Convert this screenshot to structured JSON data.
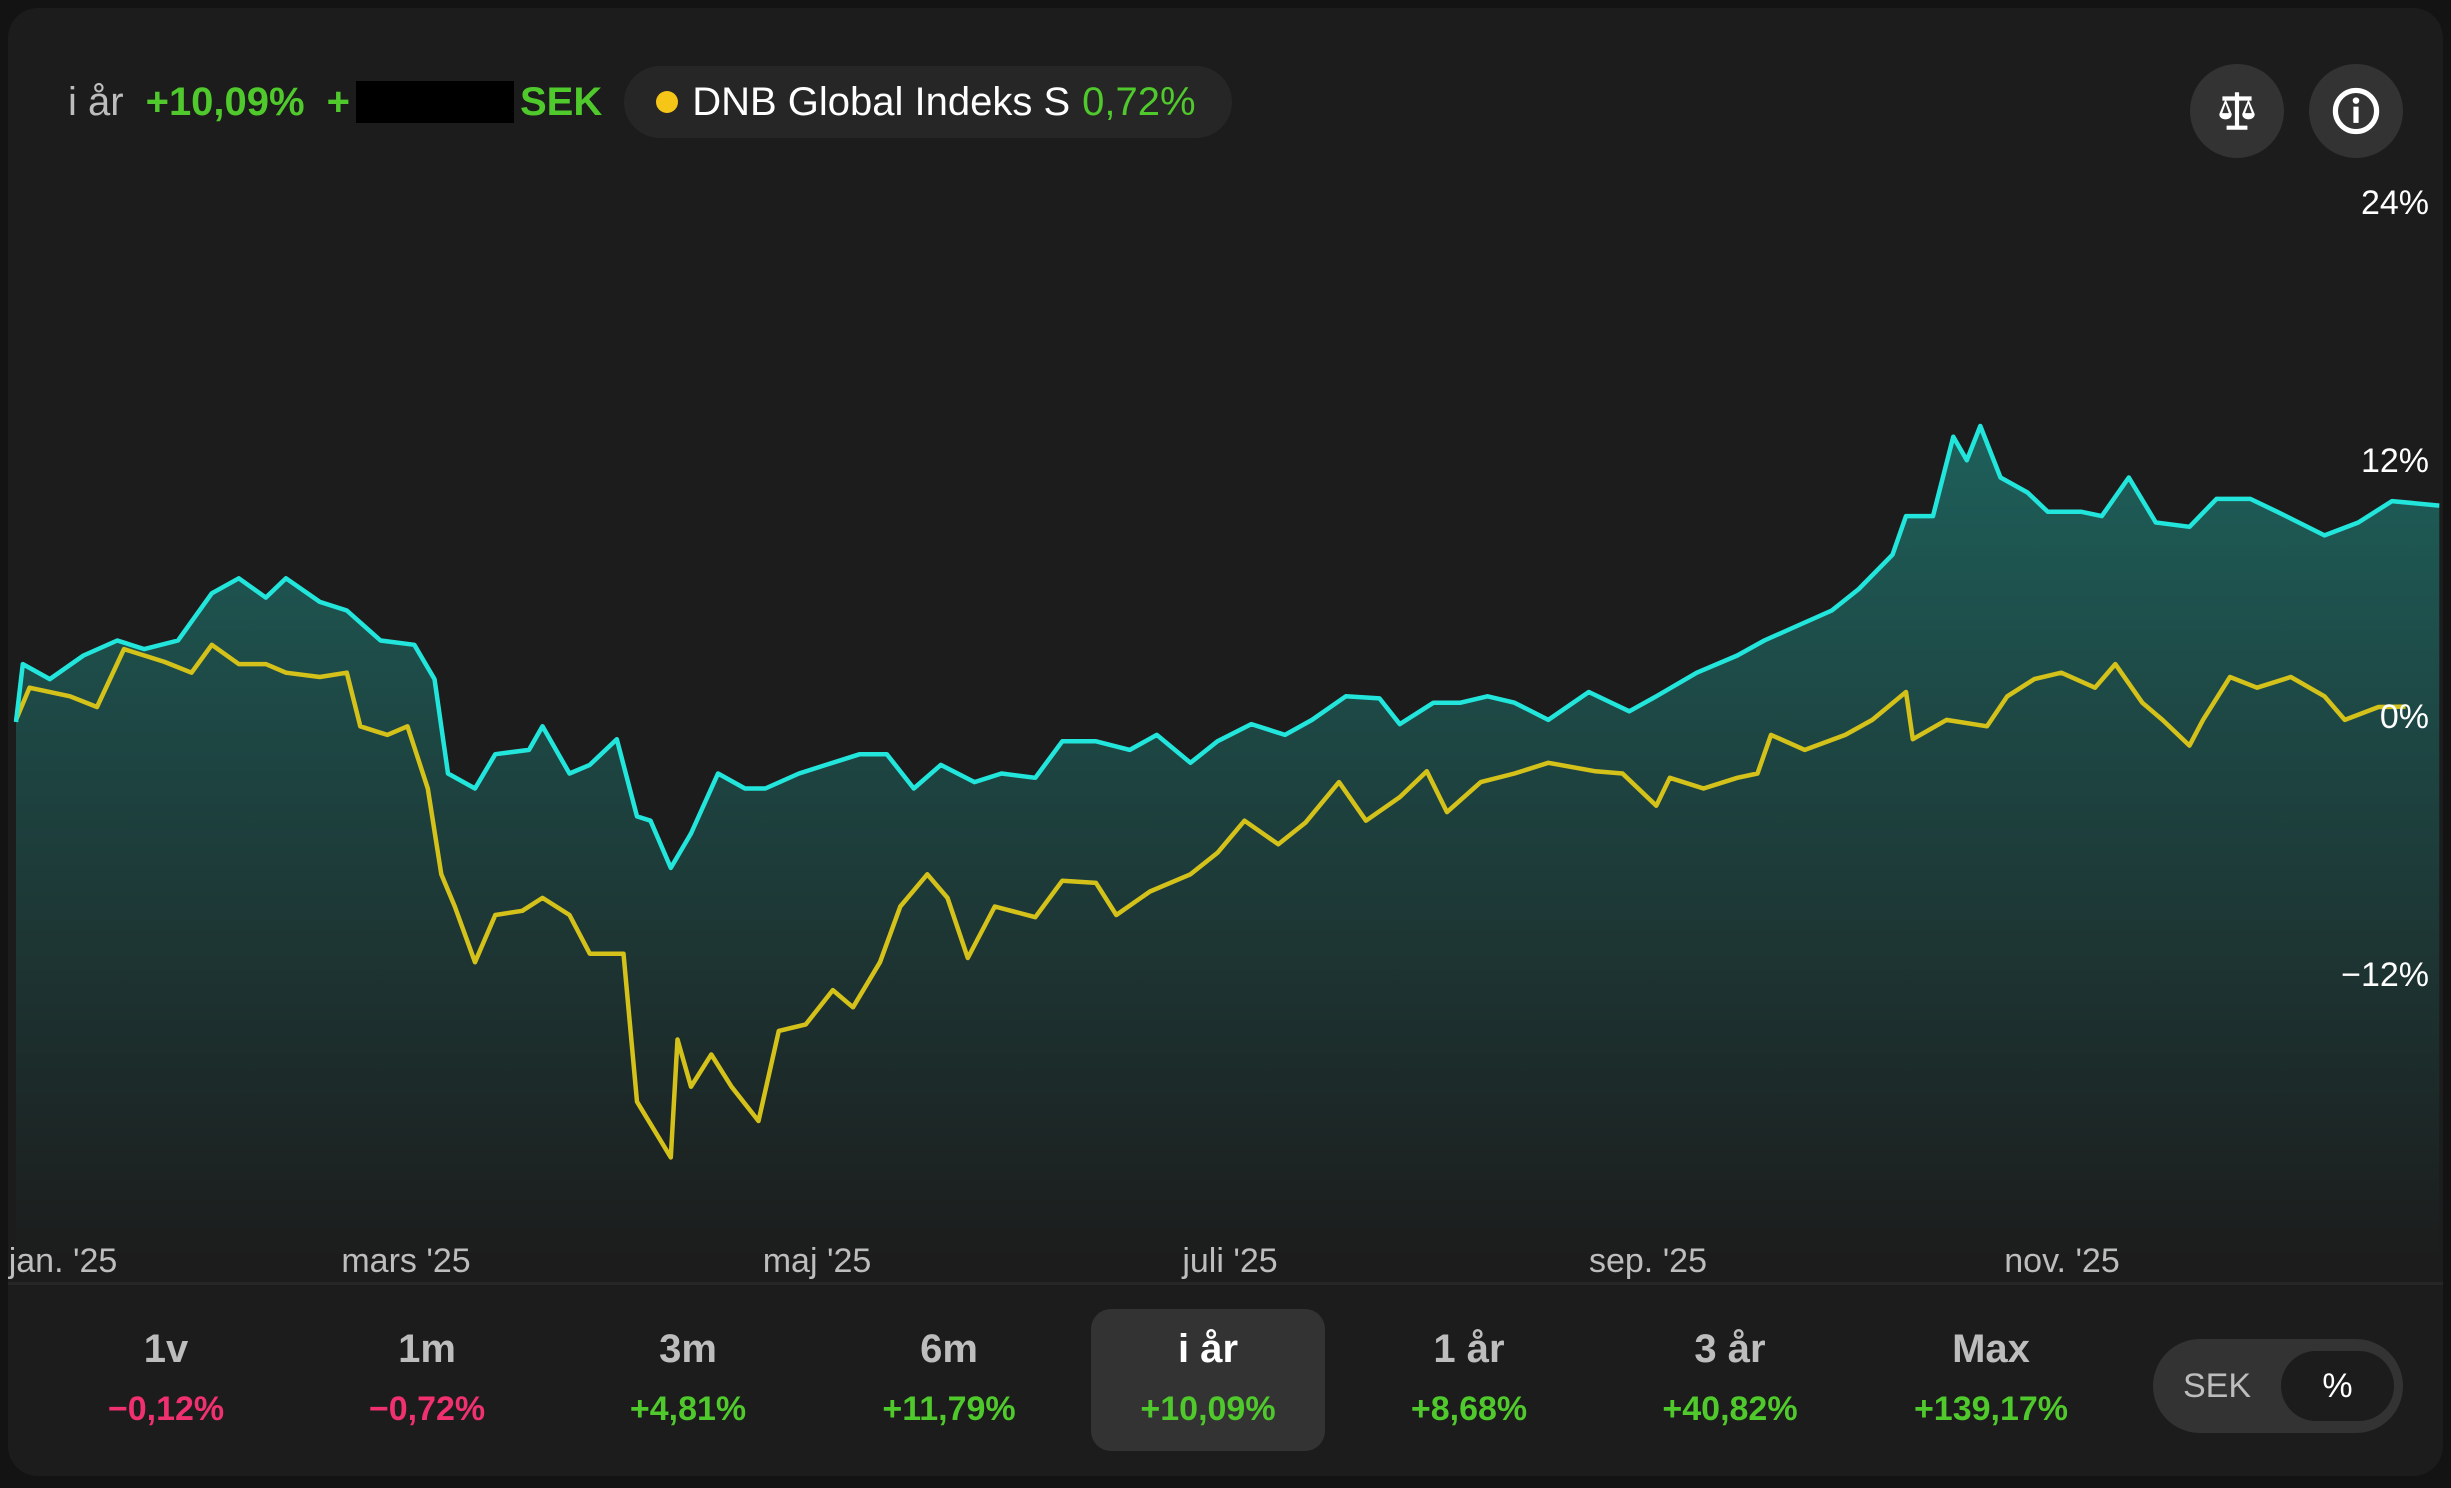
{
  "header": {
    "period_label": "i år",
    "change_percent": "+10,09%",
    "change_amount_prefix": "+",
    "currency": "SEK",
    "benchmark": {
      "name": "DNB Global Indeks S",
      "change": "0,72%",
      "color": "#f5c518"
    }
  },
  "icons": {
    "compare": "scale-balance-icon",
    "info": "info-icon"
  },
  "colors": {
    "fund_line": "#22e6dc",
    "benchmark_line": "#d4c21a",
    "positive": "#4fc92b",
    "negative": "#f0306f",
    "fill_top": "#1e5f5a"
  },
  "chart_data": {
    "type": "area",
    "y_axis": {
      "ticks": [
        "24%",
        "12%",
        "0%",
        "−12%"
      ],
      "tick_values": [
        24,
        12,
        0,
        -12
      ],
      "unit": "%",
      "position": "right"
    },
    "x_axis": {
      "ticks": [
        "jan. '25",
        "mars '25",
        "maj '25",
        "juli '25",
        "sep. '25",
        "nov. '25"
      ],
      "tick_dates": [
        "2025-01-01",
        "2025-03-01",
        "2025-05-01",
        "2025-07-01",
        "2025-09-01",
        "2025-11-01"
      ],
      "range": [
        "2025-01-01",
        "2025-12-26"
      ]
    },
    "grid": false,
    "series": [
      {
        "role": "fund",
        "color": "#22e6dc",
        "filled": true,
        "points": [
          [
            "2025-01-01",
            0
          ],
          [
            "2025-01-02",
            2.7
          ],
          [
            "2025-01-06",
            2.0
          ],
          [
            "2025-01-11",
            3.1
          ],
          [
            "2025-01-16",
            3.8
          ],
          [
            "2025-01-20",
            3.4
          ],
          [
            "2025-01-25",
            3.8
          ],
          [
            "2025-01-30",
            6.0
          ],
          [
            "2025-02-03",
            6.7
          ],
          [
            "2025-02-07",
            5.8
          ],
          [
            "2025-02-10",
            6.7
          ],
          [
            "2025-02-15",
            5.6
          ],
          [
            "2025-02-19",
            5.2
          ],
          [
            "2025-02-24",
            3.8
          ],
          [
            "2025-03-01",
            3.6
          ],
          [
            "2025-03-04",
            2.0
          ],
          [
            "2025-03-06",
            -2.4
          ],
          [
            "2025-03-10",
            -3.1
          ],
          [
            "2025-03-13",
            -1.5
          ],
          [
            "2025-03-18",
            -1.3
          ],
          [
            "2025-03-20",
            -0.2
          ],
          [
            "2025-03-24",
            -2.4
          ],
          [
            "2025-03-27",
            -2.0
          ],
          [
            "2025-03-31",
            -0.8
          ],
          [
            "2025-04-03",
            -4.4
          ],
          [
            "2025-04-05",
            -4.6
          ],
          [
            "2025-04-08",
            -6.8
          ],
          [
            "2025-04-11",
            -5.2
          ],
          [
            "2025-04-15",
            -2.4
          ],
          [
            "2025-04-19",
            -3.1
          ],
          [
            "2025-04-22",
            -3.1
          ],
          [
            "2025-04-27",
            -2.4
          ],
          [
            "2025-05-01",
            -2.0
          ],
          [
            "2025-05-06",
            -1.5
          ],
          [
            "2025-05-10",
            -1.5
          ],
          [
            "2025-05-14",
            -3.1
          ],
          [
            "2025-05-18",
            -2.0
          ],
          [
            "2025-05-23",
            -2.8
          ],
          [
            "2025-05-27",
            -2.4
          ],
          [
            "2025-06-01",
            -2.6
          ],
          [
            "2025-06-05",
            -0.9
          ],
          [
            "2025-06-10",
            -0.9
          ],
          [
            "2025-06-15",
            -1.3
          ],
          [
            "2025-06-19",
            -0.6
          ],
          [
            "2025-06-24",
            -1.9
          ],
          [
            "2025-06-28",
            -0.9
          ],
          [
            "2025-07-03",
            -0.1
          ],
          [
            "2025-07-08",
            -0.6
          ],
          [
            "2025-07-12",
            0.1
          ],
          [
            "2025-07-17",
            1.2
          ],
          [
            "2025-07-22",
            1.1
          ],
          [
            "2025-07-25",
            -0.1
          ],
          [
            "2025-07-30",
            0.9
          ],
          [
            "2025-08-03",
            0.9
          ],
          [
            "2025-08-07",
            1.2
          ],
          [
            "2025-08-11",
            0.9
          ],
          [
            "2025-08-16",
            0.1
          ],
          [
            "2025-08-22",
            1.4
          ],
          [
            "2025-08-28",
            0.5
          ],
          [
            "2025-09-01",
            1.2
          ],
          [
            "2025-09-07",
            2.3
          ],
          [
            "2025-09-13",
            3.1
          ],
          [
            "2025-09-17",
            3.8
          ],
          [
            "2025-09-22",
            4.5
          ],
          [
            "2025-09-27",
            5.2
          ],
          [
            "2025-10-01",
            6.2
          ],
          [
            "2025-10-06",
            7.8
          ],
          [
            "2025-10-08",
            9.6
          ],
          [
            "2025-10-12",
            9.6
          ],
          [
            "2025-10-15",
            13.3
          ],
          [
            "2025-10-17",
            12.2
          ],
          [
            "2025-10-19",
            13.8
          ],
          [
            "2025-10-22",
            11.4
          ],
          [
            "2025-10-26",
            10.7
          ],
          [
            "2025-10-29",
            9.8
          ],
          [
            "2025-11-03",
            9.8
          ],
          [
            "2025-11-06",
            9.6
          ],
          [
            "2025-11-10",
            11.4
          ],
          [
            "2025-11-14",
            9.3
          ],
          [
            "2025-11-19",
            9.1
          ],
          [
            "2025-11-23",
            10.4
          ],
          [
            "2025-11-28",
            10.4
          ],
          [
            "2025-12-02",
            9.8
          ],
          [
            "2025-12-09",
            8.7
          ],
          [
            "2025-12-14",
            9.3
          ],
          [
            "2025-12-19",
            10.3
          ],
          [
            "2025-12-26",
            10.09
          ]
        ]
      },
      {
        "role": "benchmark",
        "name": "DNB Global Indeks S",
        "color": "#d4c21a",
        "filled": false,
        "points": [
          [
            "2025-01-01",
            0.1
          ],
          [
            "2025-01-03",
            1.6
          ],
          [
            "2025-01-09",
            1.2
          ],
          [
            "2025-01-13",
            0.7
          ],
          [
            "2025-01-17",
            3.4
          ],
          [
            "2025-01-23",
            2.8
          ],
          [
            "2025-01-27",
            2.3
          ],
          [
            "2025-01-30",
            3.6
          ],
          [
            "2025-02-03",
            2.7
          ],
          [
            "2025-02-07",
            2.7
          ],
          [
            "2025-02-10",
            2.3
          ],
          [
            "2025-02-15",
            2.1
          ],
          [
            "2025-02-19",
            2.3
          ],
          [
            "2025-02-21",
            -0.2
          ],
          [
            "2025-02-25",
            -0.6
          ],
          [
            "2025-02-28",
            -0.2
          ],
          [
            "2025-03-03",
            -3.1
          ],
          [
            "2025-03-05",
            -7.1
          ],
          [
            "2025-03-07",
            -8.6
          ],
          [
            "2025-03-10",
            -11.2
          ],
          [
            "2025-03-13",
            -9.0
          ],
          [
            "2025-03-17",
            -8.8
          ],
          [
            "2025-03-20",
            -8.2
          ],
          [
            "2025-03-24",
            -9.0
          ],
          [
            "2025-03-27",
            -10.8
          ],
          [
            "2025-04-01",
            -10.8
          ],
          [
            "2025-04-03",
            -17.7
          ],
          [
            "2025-04-08",
            -20.3
          ],
          [
            "2025-04-09",
            -14.8
          ],
          [
            "2025-04-11",
            -17.0
          ],
          [
            "2025-04-14",
            -15.5
          ],
          [
            "2025-04-17",
            -17.0
          ],
          [
            "2025-04-21",
            -18.6
          ],
          [
            "2025-04-24",
            -14.4
          ],
          [
            "2025-04-28",
            -14.1
          ],
          [
            "2025-05-02",
            -12.5
          ],
          [
            "2025-05-05",
            -13.3
          ],
          [
            "2025-05-09",
            -11.2
          ],
          [
            "2025-05-12",
            -8.6
          ],
          [
            "2025-05-16",
            -7.1
          ],
          [
            "2025-05-19",
            -8.2
          ],
          [
            "2025-05-22",
            -11.0
          ],
          [
            "2025-05-26",
            -8.6
          ],
          [
            "2025-06-01",
            -9.1
          ],
          [
            "2025-06-05",
            -7.4
          ],
          [
            "2025-06-10",
            -7.5
          ],
          [
            "2025-06-13",
            -9.0
          ],
          [
            "2025-06-18",
            -7.9
          ],
          [
            "2025-06-24",
            -7.1
          ],
          [
            "2025-06-28",
            -6.1
          ],
          [
            "2025-07-02",
            -4.6
          ],
          [
            "2025-07-07",
            -5.7
          ],
          [
            "2025-07-11",
            -4.7
          ],
          [
            "2025-07-16",
            -2.8
          ],
          [
            "2025-07-20",
            -4.6
          ],
          [
            "2025-07-25",
            -3.5
          ],
          [
            "2025-07-29",
            -2.3
          ],
          [
            "2025-08-01",
            -4.2
          ],
          [
            "2025-08-06",
            -2.8
          ],
          [
            "2025-08-11",
            -2.4
          ],
          [
            "2025-08-16",
            -1.9
          ],
          [
            "2025-08-23",
            -2.3
          ],
          [
            "2025-08-27",
            -2.4
          ],
          [
            "2025-09-01",
            -3.9
          ],
          [
            "2025-09-03",
            -2.6
          ],
          [
            "2025-09-08",
            -3.1
          ],
          [
            "2025-09-13",
            -2.6
          ],
          [
            "2025-09-16",
            -2.4
          ],
          [
            "2025-09-18",
            -0.6
          ],
          [
            "2025-09-23",
            -1.3
          ],
          [
            "2025-09-29",
            -0.6
          ],
          [
            "2025-10-03",
            0.1
          ],
          [
            "2025-10-08",
            1.4
          ],
          [
            "2025-10-09",
            -0.8
          ],
          [
            "2025-10-14",
            0.1
          ],
          [
            "2025-10-20",
            -0.2
          ],
          [
            "2025-10-23",
            1.2
          ],
          [
            "2025-10-27",
            2.0
          ],
          [
            "2025-10-31",
            2.3
          ],
          [
            "2025-11-05",
            1.6
          ],
          [
            "2025-11-08",
            2.7
          ],
          [
            "2025-11-12",
            0.9
          ],
          [
            "2025-11-15",
            0.1
          ],
          [
            "2025-11-19",
            -1.1
          ],
          [
            "2025-11-21",
            0.1
          ],
          [
            "2025-11-25",
            2.1
          ],
          [
            "2025-11-29",
            1.6
          ],
          [
            "2025-12-04",
            2.1
          ],
          [
            "2025-12-09",
            1.2
          ],
          [
            "2025-12-12",
            0.1
          ],
          [
            "2025-12-17",
            0.7
          ],
          [
            "2025-12-21",
            0.72
          ]
        ]
      }
    ]
  },
  "periods": [
    {
      "label": "1v",
      "value": "−0,12%",
      "trend": "negative"
    },
    {
      "label": "1m",
      "value": "−0,72%",
      "trend": "negative"
    },
    {
      "label": "3m",
      "value": "+4,81%",
      "trend": "positive"
    },
    {
      "label": "6m",
      "value": "+11,79%",
      "trend": "positive"
    },
    {
      "label": "i år",
      "value": "+10,09%",
      "trend": "positive",
      "selected": true
    },
    {
      "label": "1 år",
      "value": "+8,68%",
      "trend": "positive"
    },
    {
      "label": "3 år",
      "value": "+40,82%",
      "trend": "positive"
    },
    {
      "label": "Max",
      "value": "+139,17%",
      "trend": "positive"
    }
  ],
  "unit_toggle": {
    "options": [
      "SEK",
      "%"
    ],
    "selected": "%"
  }
}
